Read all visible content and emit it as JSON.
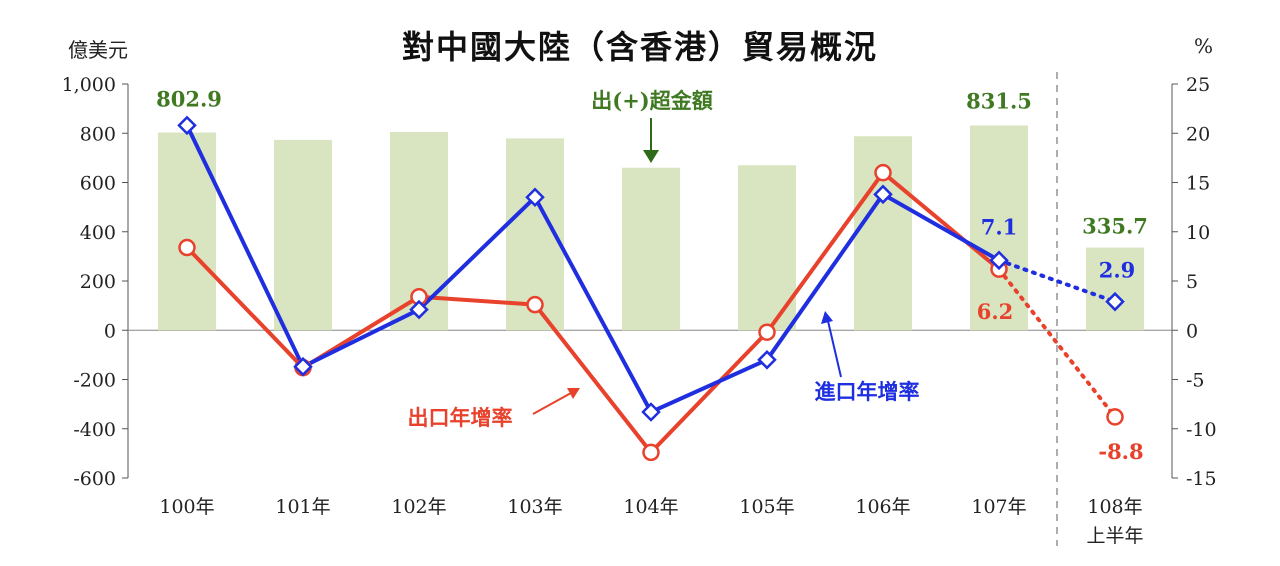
{
  "chart_data": {
    "type": "bar+line",
    "title": "對中國大陸（含香港）貿易概況",
    "left_unit": "億美元",
    "right_unit": "%",
    "categories": [
      "100年",
      "101年",
      "102年",
      "103年",
      "104年",
      "105年",
      "106年",
      "107年",
      "108年上半年"
    ],
    "category_lines": [
      [
        "100年"
      ],
      [
        "101年"
      ],
      [
        "102年"
      ],
      [
        "103年"
      ],
      [
        "104年"
      ],
      [
        "105年"
      ],
      [
        "106年"
      ],
      [
        "107年"
      ],
      [
        "108年",
        "上半年"
      ]
    ],
    "left_axis": {
      "min": -600,
      "max": 1000,
      "ticks": [
        "1,000",
        "800",
        "600",
        "400",
        "200",
        "0",
        "-200",
        "-400",
        "-600"
      ]
    },
    "right_axis": {
      "min": -15,
      "max": 25,
      "ticks": [
        "25",
        "20",
        "15",
        "10",
        "5",
        "0",
        "-5",
        "-10",
        "-15"
      ]
    },
    "series": [
      {
        "name": "出(+)超金額",
        "kind": "bar",
        "axis": "left",
        "color": "#d9e4c0",
        "values": [
          802.9,
          773,
          805,
          779,
          660,
          670,
          788,
          831.5,
          335.7
        ]
      },
      {
        "name": "出口年增率",
        "kind": "line",
        "axis": "right",
        "color": "#e8412c",
        "values": [
          8.4,
          -3.8,
          3.4,
          2.6,
          -12.4,
          -0.2,
          16.0,
          6.2,
          -8.8
        ]
      },
      {
        "name": "進口年增率",
        "kind": "line",
        "axis": "right",
        "color": "#1f2fe0",
        "values": [
          20.8,
          -3.7,
          2.1,
          13.5,
          -8.3,
          -3.0,
          13.8,
          7.1,
          2.9
        ]
      }
    ],
    "data_labels": [
      {
        "text": "802.9",
        "series": "出(+)超金額",
        "index": 0
      },
      {
        "text": "831.5",
        "series": "出(+)超金額",
        "index": 7
      },
      {
        "text": "335.7",
        "series": "出(+)超金額",
        "index": 8
      },
      {
        "text": "7.1",
        "series": "進口年增率",
        "index": 7
      },
      {
        "text": "2.9",
        "series": "進口年增率",
        "index": 8
      },
      {
        "text": "6.2",
        "series": "出口年增率",
        "index": 7
      },
      {
        "text": "-8.8",
        "series": "出口年增率",
        "index": 8
      }
    ],
    "annotations": {
      "bar_label": "出(+)超金額",
      "export_label": "出口年增率",
      "import_label": "進口年增率"
    },
    "dotted_from_index": 7,
    "separator_before_index": 8
  }
}
